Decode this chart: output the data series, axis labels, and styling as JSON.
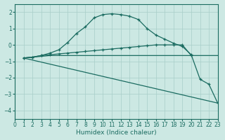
{
  "xlabel": "Humidex (Indice chaleur)",
  "ylabel": "",
  "background_color": "#cce8e3",
  "grid_color": "#a8cec8",
  "line_color": "#1a6b60",
  "xlim": [
    0,
    23
  ],
  "ylim": [
    -4.5,
    2.5
  ],
  "yticks": [
    -4,
    -3,
    -2,
    -1,
    0,
    1,
    2
  ],
  "xticks": [
    0,
    1,
    2,
    3,
    4,
    5,
    6,
    7,
    8,
    9,
    10,
    11,
    12,
    13,
    14,
    15,
    16,
    17,
    18,
    19,
    20,
    21,
    22,
    23
  ],
  "series": [
    {
      "x": [
        1,
        2,
        3,
        4,
        5,
        6,
        7,
        8,
        9,
        10,
        11,
        12,
        13,
        14,
        15,
        16,
        17,
        18,
        19,
        20,
        21,
        22,
        23
      ],
      "y": [
        -0.8,
        -0.75,
        -0.65,
        -0.5,
        -0.3,
        0.15,
        0.7,
        1.1,
        1.65,
        1.85,
        1.9,
        1.85,
        1.75,
        1.55,
        1.0,
        0.6,
        0.35,
        0.1,
        -0.1,
        -0.6,
        -2.1,
        -2.4,
        -3.55
      ],
      "marker": true
    },
    {
      "x": [
        1,
        2,
        3,
        4,
        5,
        6,
        7,
        8,
        9,
        10,
        11,
        12,
        13,
        14,
        15,
        16,
        17,
        18,
        19,
        20
      ],
      "y": [
        -0.8,
        -0.75,
        -0.65,
        -0.6,
        -0.55,
        -0.5,
        -0.45,
        -0.4,
        -0.35,
        -0.3,
        -0.25,
        -0.2,
        -0.15,
        -0.1,
        -0.05,
        0.0,
        0.0,
        0.0,
        0.0,
        -0.65
      ],
      "marker": true
    },
    {
      "x": [
        1,
        23
      ],
      "y": [
        -0.8,
        -3.55
      ],
      "marker": false
    },
    {
      "x": [
        1,
        2,
        3,
        4,
        5,
        6,
        7,
        8,
        9,
        10,
        11,
        12,
        13,
        14,
        15,
        16,
        17,
        18,
        19,
        20,
        21,
        22,
        23
      ],
      "y": [
        -0.8,
        -0.75,
        -0.7,
        -0.65,
        -0.65,
        -0.65,
        -0.65,
        -0.65,
        -0.65,
        -0.65,
        -0.65,
        -0.65,
        -0.65,
        -0.65,
        -0.65,
        -0.65,
        -0.65,
        -0.65,
        -0.65,
        -0.65,
        -0.65,
        -0.65,
        -0.65
      ],
      "marker": false
    }
  ]
}
